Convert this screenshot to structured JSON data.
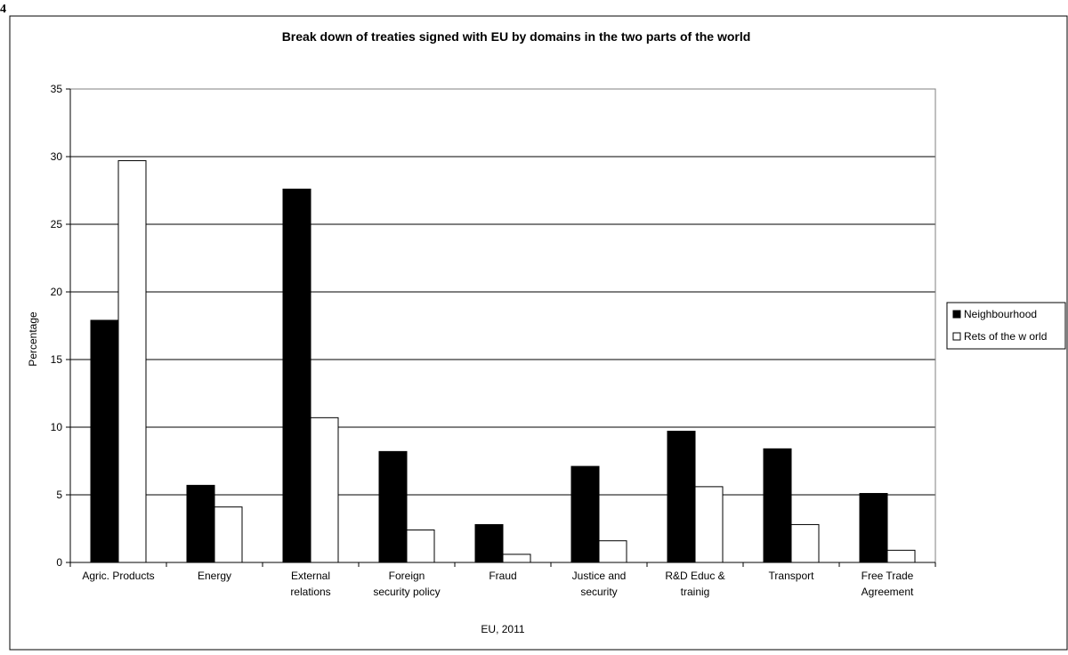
{
  "page_label": "4",
  "chart_data": {
    "type": "bar",
    "title": "Break down of treaties signed with EU by domains in the two parts of the world",
    "xlabel": "EU, 2011",
    "ylabel": "Percentage",
    "ylim": [
      0,
      35
    ],
    "yticks": [
      0,
      5,
      10,
      15,
      20,
      25,
      30,
      35
    ],
    "grid": true,
    "legend_position": "right",
    "categories": [
      [
        "Agric. Products"
      ],
      [
        "Energy"
      ],
      [
        "External",
        "relations"
      ],
      [
        "Foreign",
        "security policy"
      ],
      [
        "Fraud"
      ],
      [
        "Justice and",
        "security"
      ],
      [
        "R&D Educ &",
        "trainig"
      ],
      [
        "Transport"
      ],
      [
        "Free Trade",
        "Agreement"
      ]
    ],
    "series": [
      {
        "name": "Neighbourhood",
        "color": "#000000",
        "values": [
          17.9,
          5.7,
          27.6,
          8.2,
          2.8,
          7.1,
          9.7,
          8.4,
          5.1
        ]
      },
      {
        "name": "Rets of the w orld",
        "color": "#ffffff",
        "values": [
          29.7,
          4.1,
          10.7,
          2.4,
          0.6,
          1.6,
          5.6,
          2.8,
          0.9
        ]
      }
    ]
  }
}
